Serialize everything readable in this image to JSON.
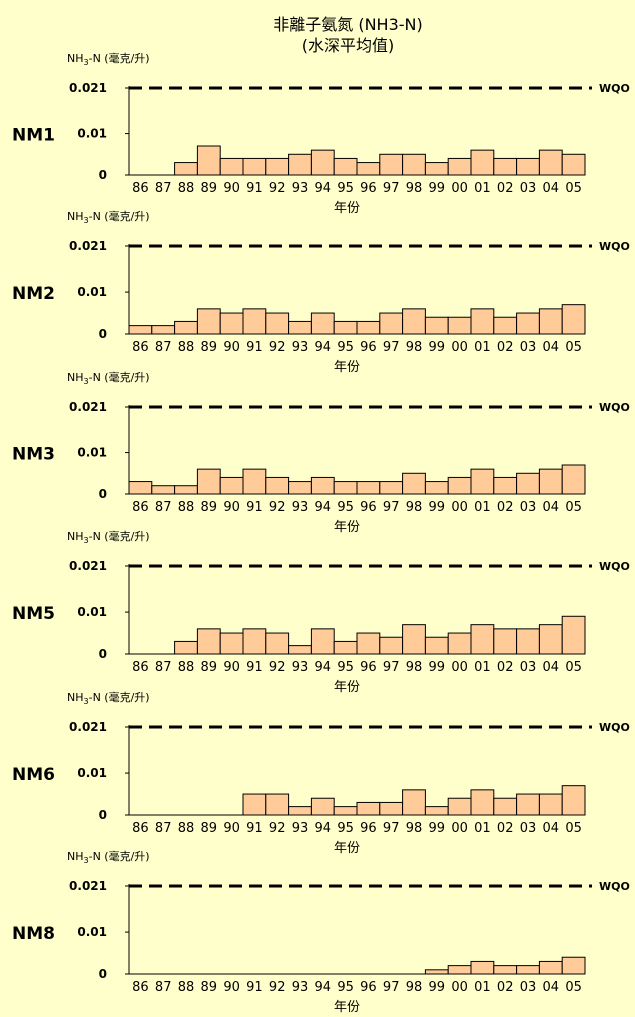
{
  "title_line1": "非離子氨氮 (NH3-N)",
  "title_line2": "(水深平均值)",
  "colors": {
    "background": "#ffffcc",
    "bar_fill": "#ffcc99",
    "bar_stroke": "#000000"
  },
  "chart_data": [
    {
      "type": "bar",
      "panel": "NM1",
      "ylabel": "NH3-N (毫克/升)",
      "xlabel": "年份",
      "wqo_label": "WQO",
      "wqo_value": 0.021,
      "ylim": [
        0,
        0.021
      ],
      "yticks": [
        "0",
        "0.01",
        "0.021"
      ],
      "categories": [
        "86",
        "87",
        "88",
        "89",
        "90",
        "91",
        "92",
        "93",
        "94",
        "95",
        "96",
        "97",
        "98",
        "99",
        "00",
        "01",
        "02",
        "03",
        "04",
        "05"
      ],
      "values": [
        null,
        null,
        0.003,
        0.007,
        0.004,
        0.004,
        0.004,
        0.005,
        0.006,
        0.004,
        0.003,
        0.005,
        0.005,
        0.003,
        0.004,
        0.006,
        0.004,
        0.004,
        0.006,
        0.005
      ]
    },
    {
      "type": "bar",
      "panel": "NM2",
      "ylabel": "NH3-N (毫克/升)",
      "xlabel": "年份",
      "wqo_label": "WQO",
      "wqo_value": 0.021,
      "ylim": [
        0,
        0.021
      ],
      "yticks": [
        "0",
        "0.01",
        "0.021"
      ],
      "categories": [
        "86",
        "87",
        "88",
        "89",
        "90",
        "91",
        "92",
        "93",
        "94",
        "95",
        "96",
        "97",
        "98",
        "99",
        "00",
        "01",
        "02",
        "03",
        "04",
        "05"
      ],
      "values": [
        0.002,
        0.002,
        0.003,
        0.006,
        0.005,
        0.006,
        0.005,
        0.003,
        0.005,
        0.003,
        0.003,
        0.005,
        0.006,
        0.004,
        0.004,
        0.006,
        0.004,
        0.005,
        0.006,
        0.007
      ]
    },
    {
      "type": "bar",
      "panel": "NM3",
      "ylabel": "NH3-N (毫克/升)",
      "xlabel": "年份",
      "wqo_label": "WQO",
      "wqo_value": 0.021,
      "ylim": [
        0,
        0.021
      ],
      "yticks": [
        "0",
        "0.01",
        "0.021"
      ],
      "categories": [
        "86",
        "87",
        "88",
        "89",
        "90",
        "91",
        "92",
        "93",
        "94",
        "95",
        "96",
        "97",
        "98",
        "99",
        "00",
        "01",
        "02",
        "03",
        "04",
        "05"
      ],
      "values": [
        0.003,
        0.002,
        0.002,
        0.006,
        0.004,
        0.006,
        0.004,
        0.003,
        0.004,
        0.003,
        0.003,
        0.003,
        0.005,
        0.003,
        0.004,
        0.006,
        0.004,
        0.005,
        0.006,
        0.007
      ]
    },
    {
      "type": "bar",
      "panel": "NM5",
      "ylabel": "NH3-N (毫克/升)",
      "xlabel": "年份",
      "wqo_label": "WQO",
      "wqo_value": 0.021,
      "ylim": [
        0,
        0.021
      ],
      "yticks": [
        "0",
        "0.01",
        "0.021"
      ],
      "categories": [
        "86",
        "87",
        "88",
        "89",
        "90",
        "91",
        "92",
        "93",
        "94",
        "95",
        "96",
        "97",
        "98",
        "99",
        "00",
        "01",
        "02",
        "03",
        "04",
        "05"
      ],
      "values": [
        null,
        null,
        0.003,
        0.006,
        0.005,
        0.006,
        0.005,
        0.002,
        0.006,
        0.003,
        0.005,
        0.004,
        0.007,
        0.004,
        0.005,
        0.007,
        0.006,
        0.006,
        0.007,
        0.009
      ]
    },
    {
      "type": "bar",
      "panel": "NM6",
      "ylabel": "NH3-N (毫克/升)",
      "xlabel": "年份",
      "wqo_label": "WQO",
      "wqo_value": 0.021,
      "ylim": [
        0,
        0.021
      ],
      "yticks": [
        "0",
        "0.01",
        "0.021"
      ],
      "categories": [
        "86",
        "87",
        "88",
        "89",
        "90",
        "91",
        "92",
        "93",
        "94",
        "95",
        "96",
        "97",
        "98",
        "99",
        "00",
        "01",
        "02",
        "03",
        "04",
        "05"
      ],
      "values": [
        null,
        null,
        null,
        null,
        null,
        0.005,
        0.005,
        0.002,
        0.004,
        0.002,
        0.003,
        0.003,
        0.006,
        0.002,
        0.004,
        0.006,
        0.004,
        0.005,
        0.005,
        0.007
      ]
    },
    {
      "type": "bar",
      "panel": "NM8",
      "ylabel": "NH3-N (毫克/升)",
      "xlabel": "年份",
      "wqo_label": "WQO",
      "wqo_value": 0.021,
      "ylim": [
        0,
        0.021
      ],
      "yticks": [
        "0",
        "0.01",
        "0.021"
      ],
      "categories": [
        "86",
        "87",
        "88",
        "89",
        "90",
        "91",
        "92",
        "93",
        "94",
        "95",
        "96",
        "97",
        "98",
        "99",
        "00",
        "01",
        "02",
        "03",
        "04",
        "05"
      ],
      "values": [
        null,
        null,
        null,
        null,
        null,
        null,
        null,
        null,
        null,
        null,
        null,
        null,
        null,
        0.001,
        0.002,
        0.003,
        0.002,
        0.002,
        0.003,
        0.004
      ]
    }
  ]
}
